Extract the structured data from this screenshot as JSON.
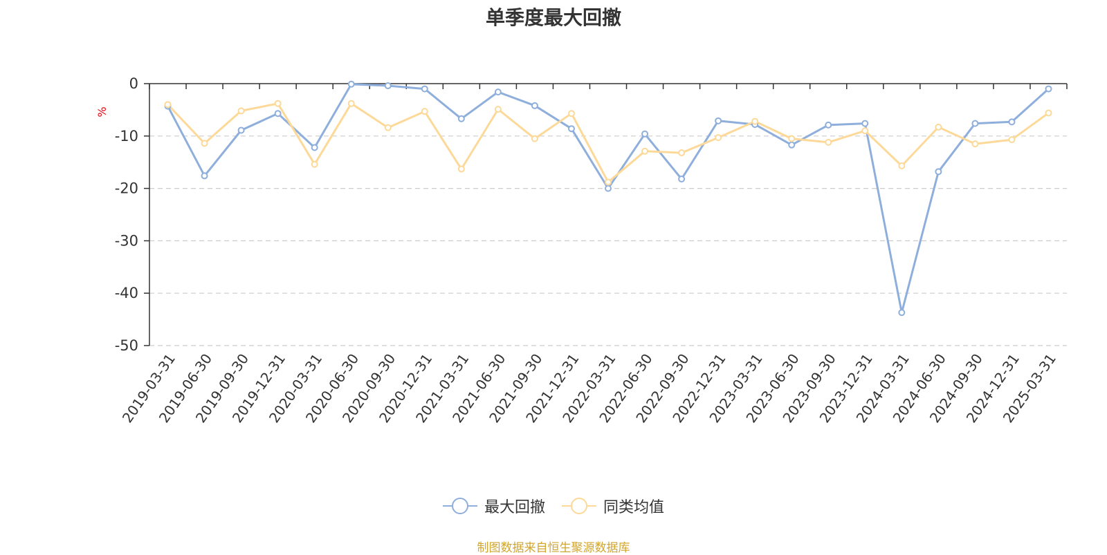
{
  "colors": {
    "series1": "#8eaedc",
    "series2": "#fcd998",
    "grid": "#cccccc",
    "axis": "#333333",
    "text": "#333333",
    "ylabel": "#e8000b",
    "source": "#d1a62f"
  },
  "source_text": "制图数据来自恒生聚源数据库",
  "chart_data": {
    "type": "line",
    "title": "单季度最大回撤",
    "xlabel": "",
    "ylabel": "%",
    "ylim": [
      -50,
      0
    ],
    "yticks": [
      0,
      -10,
      -20,
      -30,
      -40,
      -50
    ],
    "grid": true,
    "legend_position": "bottom-center",
    "categories": [
      "2019-03-31",
      "2019-06-30",
      "2019-09-30",
      "2019-12-31",
      "2020-03-31",
      "2020-06-30",
      "2020-09-30",
      "2020-12-31",
      "2021-03-31",
      "2021-06-30",
      "2021-09-30",
      "2021-12-31",
      "2022-03-31",
      "2022-06-30",
      "2022-09-30",
      "2022-12-31",
      "2023-03-31",
      "2023-06-30",
      "2023-09-30",
      "2023-12-31",
      "2024-03-31",
      "2024-06-30",
      "2024-09-30",
      "2024-12-31",
      "2025-03-31"
    ],
    "series": [
      {
        "name": "最大回撤",
        "color": "#8eaedc",
        "values": [
          -4.3,
          -17.6,
          -8.9,
          -5.7,
          -12.2,
          -0.1,
          -0.4,
          -1.0,
          -6.7,
          -1.6,
          -4.2,
          -8.6,
          -20.0,
          -9.6,
          -18.2,
          -7.1,
          -7.8,
          -11.7,
          -7.9,
          -7.6,
          -43.7,
          -16.8,
          -7.6,
          -7.3,
          -1.0
        ]
      },
      {
        "name": "同类均值",
        "color": "#fcd998",
        "values": [
          -4.0,
          -11.4,
          -5.2,
          -3.8,
          -15.4,
          -3.8,
          -8.4,
          -5.3,
          -16.3,
          -4.9,
          -10.5,
          -5.7,
          -18.8,
          -12.9,
          -13.2,
          -10.3,
          -7.2,
          -10.5,
          -11.2,
          -9.0,
          -15.7,
          -8.3,
          -11.5,
          -10.7,
          -5.6
        ]
      }
    ]
  }
}
